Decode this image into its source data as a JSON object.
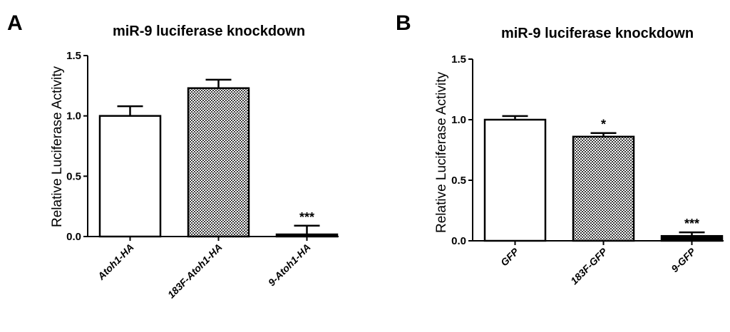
{
  "chart_data": [
    {
      "panel_label": "A",
      "type": "bar",
      "title": "miR-9 luciferase knockdown",
      "xlabel": "",
      "ylabel": "Relative Luciferase Activity",
      "ylim": [
        0,
        1.5
      ],
      "yticks": [
        "0.0",
        "0.5",
        "1.0",
        "1.5"
      ],
      "grid": false,
      "categories": [
        "Atoh1-HA",
        "183F-Atoh1-HA",
        "9-Atoh1-HA"
      ],
      "values": [
        1.0,
        1.23,
        0.01
      ],
      "errors": [
        0.08,
        0.07,
        0.08
      ],
      "fills": [
        "white",
        "checker",
        "black"
      ],
      "annotations": [
        "",
        "",
        "***"
      ]
    },
    {
      "panel_label": "B",
      "type": "bar",
      "title": "miR-9 luciferase knockdown",
      "xlabel": "",
      "ylabel": "Relative Luciferase Activity",
      "ylim": [
        0,
        1.5
      ],
      "yticks": [
        "0.0",
        "0.5",
        "1.0",
        "1.5"
      ],
      "grid": false,
      "categories": [
        "GFP",
        "183F-GFP",
        "9-GFP"
      ],
      "values": [
        1.0,
        0.86,
        0.04
      ],
      "errors": [
        0.03,
        0.03,
        0.03
      ],
      "fills": [
        "white",
        "checker",
        "black"
      ],
      "annotations": [
        "",
        "*",
        "***"
      ]
    }
  ],
  "colors": {
    "axis": "#000000",
    "bar_outline": "#000000",
    "checker_dark": "#3c3c3c",
    "checker_light": "#ffffff"
  }
}
